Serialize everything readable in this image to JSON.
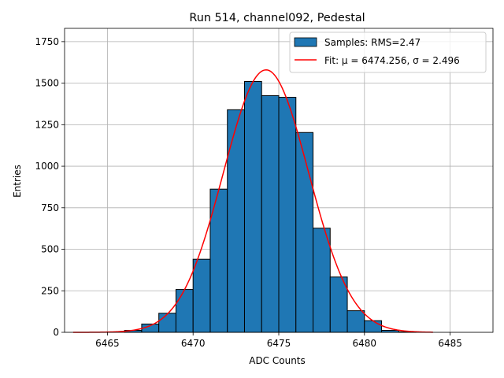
{
  "chart_data": {
    "type": "bar",
    "title": "Run 514, channel092, Pedestal",
    "xlabel": "ADC Counts",
    "ylabel": "Entries",
    "xlim": [
      6462.5,
      6487.5
    ],
    "ylim": [
      0,
      1830
    ],
    "xticks": [
      6465,
      6470,
      6475,
      6480,
      6485
    ],
    "yticks": [
      0,
      250,
      500,
      750,
      1000,
      1250,
      1500,
      1750
    ],
    "grid": true,
    "legend_position": "top-right",
    "histogram": {
      "name": "Samples: RMS=2.47",
      "color": "#1f77b4",
      "bin_width": 1,
      "bins": [
        {
          "left": 6466,
          "value": 12
        },
        {
          "left": 6467,
          "value": 50
        },
        {
          "left": 6468,
          "value": 115
        },
        {
          "left": 6469,
          "value": 258
        },
        {
          "left": 6470,
          "value": 440
        },
        {
          "left": 6471,
          "value": 862
        },
        {
          "left": 6472,
          "value": 1340
        },
        {
          "left": 6473,
          "value": 1510
        },
        {
          "left": 6474,
          "value": 1425
        },
        {
          "left": 6475,
          "value": 1415
        },
        {
          "left": 6476,
          "value": 1203
        },
        {
          "left": 6477,
          "value": 627
        },
        {
          "left": 6478,
          "value": 333
        },
        {
          "left": 6479,
          "value": 130
        },
        {
          "left": 6480,
          "value": 70
        },
        {
          "left": 6481,
          "value": 12
        },
        {
          "left": 6482,
          "value": 3
        }
      ]
    },
    "fit": {
      "name": "Fit: μ = 6474.256, σ = 2.496",
      "color": "#ff0000",
      "mu": 6474.256,
      "sigma": 2.496,
      "amplitude": 1580,
      "x_range": [
        6463,
        6484
      ]
    }
  }
}
